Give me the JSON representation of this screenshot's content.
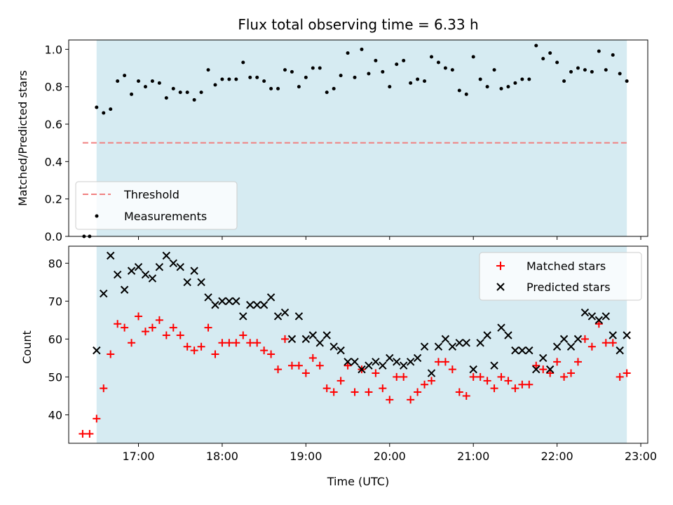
{
  "chart_data": [
    {
      "type": "scatter",
      "title": "Flux total observing time = 6.33 h",
      "xlabel": "",
      "ylabel": "Matched/Predicted stars",
      "xlim": [
        "16:10",
        "23:05"
      ],
      "ylim": [
        0,
        1.05
      ],
      "x_ticks": [
        "17:00",
        "18:00",
        "19:00",
        "20:00",
        "21:00",
        "22:00",
        "23:00"
      ],
      "y_ticks": [
        "0.0",
        "0.2",
        "0.4",
        "0.6",
        "0.8",
        "1.0"
      ],
      "shaded_interval": [
        "16:30",
        "22:50"
      ],
      "shade_color": "#add8e6",
      "legend_position": "lower-left",
      "series": [
        {
          "name": "Threshold",
          "kind": "dashed-line",
          "color": "#f08080",
          "points": [
            [
              "16:20",
              0.5
            ],
            [
              "22:50",
              0.5
            ]
          ]
        },
        {
          "name": "Measurements",
          "kind": "dot",
          "color": "#000000",
          "points": [
            [
              "16:21",
              0.0
            ],
            [
              "16:25",
              0.0
            ],
            [
              "16:30",
              0.69
            ],
            [
              "16:35",
              0.66
            ],
            [
              "16:40",
              0.68
            ],
            [
              "16:45",
              0.83
            ],
            [
              "16:50",
              0.86
            ],
            [
              "16:55",
              0.76
            ],
            [
              "17:00",
              0.83
            ],
            [
              "17:05",
              0.8
            ],
            [
              "17:10",
              0.83
            ],
            [
              "17:15",
              0.82
            ],
            [
              "17:20",
              0.74
            ],
            [
              "17:25",
              0.79
            ],
            [
              "17:30",
              0.77
            ],
            [
              "17:35",
              0.77
            ],
            [
              "17:40",
              0.73
            ],
            [
              "17:45",
              0.77
            ],
            [
              "17:50",
              0.89
            ],
            [
              "17:55",
              0.81
            ],
            [
              "18:00",
              0.84
            ],
            [
              "18:05",
              0.84
            ],
            [
              "18:10",
              0.84
            ],
            [
              "18:15",
              0.93
            ],
            [
              "18:20",
              0.85
            ],
            [
              "18:25",
              0.85
            ],
            [
              "18:30",
              0.83
            ],
            [
              "18:35",
              0.79
            ],
            [
              "18:40",
              0.79
            ],
            [
              "18:45",
              0.89
            ],
            [
              "18:50",
              0.88
            ],
            [
              "18:55",
              0.8
            ],
            [
              "19:00",
              0.85
            ],
            [
              "19:05",
              0.9
            ],
            [
              "19:10",
              0.9
            ],
            [
              "19:15",
              0.77
            ],
            [
              "19:20",
              0.79
            ],
            [
              "19:25",
              0.86
            ],
            [
              "19:30",
              0.98
            ],
            [
              "19:35",
              0.85
            ],
            [
              "19:40",
              1.0
            ],
            [
              "19:45",
              0.87
            ],
            [
              "19:50",
              0.94
            ],
            [
              "19:55",
              0.88
            ],
            [
              "20:00",
              0.8
            ],
            [
              "20:05",
              0.92
            ],
            [
              "20:10",
              0.94
            ],
            [
              "20:15",
              0.82
            ],
            [
              "20:20",
              0.84
            ],
            [
              "20:25",
              0.83
            ],
            [
              "20:30",
              0.96
            ],
            [
              "20:35",
              0.93
            ],
            [
              "20:40",
              0.9
            ],
            [
              "20:45",
              0.89
            ],
            [
              "20:50",
              0.78
            ],
            [
              "20:55",
              0.76
            ],
            [
              "21:00",
              0.96
            ],
            [
              "21:05",
              0.84
            ],
            [
              "21:10",
              0.8
            ],
            [
              "21:15",
              0.89
            ],
            [
              "21:20",
              0.79
            ],
            [
              "21:25",
              0.8
            ],
            [
              "21:30",
              0.82
            ],
            [
              "21:35",
              0.84
            ],
            [
              "21:40",
              0.84
            ],
            [
              "21:45",
              1.02
            ],
            [
              "21:50",
              0.95
            ],
            [
              "21:55",
              0.98
            ],
            [
              "22:00",
              0.93
            ],
            [
              "22:05",
              0.83
            ],
            [
              "22:10",
              0.88
            ],
            [
              "22:15",
              0.9
            ],
            [
              "22:20",
              0.89
            ],
            [
              "22:25",
              0.88
            ],
            [
              "22:30",
              0.99
            ],
            [
              "22:35",
              0.89
            ],
            [
              "22:40",
              0.97
            ],
            [
              "22:45",
              0.87
            ],
            [
              "22:50",
              0.83
            ]
          ]
        }
      ]
    },
    {
      "type": "scatter",
      "title": "",
      "xlabel": "Time (UTC)",
      "ylabel": "Count",
      "xlim": [
        "16:10",
        "23:05"
      ],
      "ylim": [
        32.5,
        84.5
      ],
      "x_ticks": [
        "17:00",
        "18:00",
        "19:00",
        "20:00",
        "21:00",
        "22:00",
        "23:00"
      ],
      "y_ticks": [
        "40",
        "50",
        "60",
        "70",
        "80"
      ],
      "shaded_interval": [
        "16:30",
        "22:50"
      ],
      "shade_color": "#add8e6",
      "legend_position": "top-right",
      "series": [
        {
          "name": "Matched stars",
          "kind": "plus",
          "color": "#ff0000",
          "points": [
            [
              "16:20",
              35
            ],
            [
              "16:25",
              35
            ],
            [
              "16:30",
              39
            ],
            [
              "16:35",
              47
            ],
            [
              "16:40",
              56
            ],
            [
              "16:45",
              64
            ],
            [
              "16:50",
              63
            ],
            [
              "16:55",
              59
            ],
            [
              "17:00",
              66
            ],
            [
              "17:05",
              62
            ],
            [
              "17:10",
              63
            ],
            [
              "17:15",
              65
            ],
            [
              "17:20",
              61
            ],
            [
              "17:25",
              63
            ],
            [
              "17:30",
              61
            ],
            [
              "17:35",
              58
            ],
            [
              "17:40",
              57
            ],
            [
              "17:45",
              58
            ],
            [
              "17:50",
              63
            ],
            [
              "17:55",
              56
            ],
            [
              "18:00",
              59
            ],
            [
              "18:05",
              59
            ],
            [
              "18:10",
              59
            ],
            [
              "18:15",
              61
            ],
            [
              "18:20",
              59
            ],
            [
              "18:25",
              59
            ],
            [
              "18:30",
              57
            ],
            [
              "18:35",
              56
            ],
            [
              "18:40",
              52
            ],
            [
              "18:45",
              60
            ],
            [
              "18:50",
              53
            ],
            [
              "18:55",
              53
            ],
            [
              "19:00",
              51
            ],
            [
              "19:05",
              55
            ],
            [
              "19:10",
              53
            ],
            [
              "19:15",
              47
            ],
            [
              "19:20",
              46
            ],
            [
              "19:25",
              49
            ],
            [
              "19:30",
              53
            ],
            [
              "19:35",
              46
            ],
            [
              "19:40",
              52
            ],
            [
              "19:45",
              46
            ],
            [
              "19:50",
              51
            ],
            [
              "19:55",
              47
            ],
            [
              "20:00",
              44
            ],
            [
              "20:05",
              50
            ],
            [
              "20:10",
              50
            ],
            [
              "20:15",
              44
            ],
            [
              "20:20",
              46
            ],
            [
              "20:25",
              48
            ],
            [
              "20:30",
              49
            ],
            [
              "20:35",
              54
            ],
            [
              "20:40",
              54
            ],
            [
              "20:45",
              52
            ],
            [
              "20:50",
              46
            ],
            [
              "20:55",
              45
            ],
            [
              "21:00",
              50
            ],
            [
              "21:05",
              50
            ],
            [
              "21:10",
              49
            ],
            [
              "21:15",
              47
            ],
            [
              "21:20",
              50
            ],
            [
              "21:25",
              49
            ],
            [
              "21:30",
              47
            ],
            [
              "21:35",
              48
            ],
            [
              "21:40",
              48
            ],
            [
              "21:45",
              53
            ],
            [
              "21:50",
              52
            ],
            [
              "21:55",
              51
            ],
            [
              "22:00",
              54
            ],
            [
              "22:05",
              50
            ],
            [
              "22:10",
              51
            ],
            [
              "22:15",
              54
            ],
            [
              "22:20",
              60
            ],
            [
              "22:25",
              58
            ],
            [
              "22:30",
              64
            ],
            [
              "22:35",
              59
            ],
            [
              "22:40",
              59
            ],
            [
              "22:45",
              50
            ],
            [
              "22:50",
              51
            ]
          ]
        },
        {
          "name": "Predicted stars",
          "kind": "cross",
          "color": "#000000",
          "points": [
            [
              "16:30",
              57
            ],
            [
              "16:35",
              72
            ],
            [
              "16:40",
              82
            ],
            [
              "16:45",
              77
            ],
            [
              "16:50",
              73
            ],
            [
              "16:55",
              78
            ],
            [
              "17:00",
              79
            ],
            [
              "17:05",
              77
            ],
            [
              "17:10",
              76
            ],
            [
              "17:15",
              79
            ],
            [
              "17:20",
              82
            ],
            [
              "17:25",
              80
            ],
            [
              "17:30",
              79
            ],
            [
              "17:35",
              75
            ],
            [
              "17:40",
              78
            ],
            [
              "17:45",
              75
            ],
            [
              "17:50",
              71
            ],
            [
              "17:55",
              69
            ],
            [
              "18:00",
              70
            ],
            [
              "18:05",
              70
            ],
            [
              "18:10",
              70
            ],
            [
              "18:15",
              66
            ],
            [
              "18:20",
              69
            ],
            [
              "18:25",
              69
            ],
            [
              "18:30",
              69
            ],
            [
              "18:35",
              71
            ],
            [
              "18:40",
              66
            ],
            [
              "18:45",
              67
            ],
            [
              "18:50",
              60
            ],
            [
              "18:55",
              66
            ],
            [
              "19:00",
              60
            ],
            [
              "19:05",
              61
            ],
            [
              "19:10",
              59
            ],
            [
              "19:15",
              61
            ],
            [
              "19:20",
              58
            ],
            [
              "19:25",
              57
            ],
            [
              "19:30",
              54
            ],
            [
              "19:35",
              54
            ],
            [
              "19:40",
              52
            ],
            [
              "19:45",
              53
            ],
            [
              "19:50",
              54
            ],
            [
              "19:55",
              53
            ],
            [
              "20:00",
              55
            ],
            [
              "20:05",
              54
            ],
            [
              "20:10",
              53
            ],
            [
              "20:15",
              54
            ],
            [
              "20:20",
              55
            ],
            [
              "20:25",
              58
            ],
            [
              "20:30",
              51
            ],
            [
              "20:35",
              58
            ],
            [
              "20:40",
              60
            ],
            [
              "20:45",
              58
            ],
            [
              "20:50",
              59
            ],
            [
              "20:55",
              59
            ],
            [
              "21:00",
              52
            ],
            [
              "21:05",
              59
            ],
            [
              "21:10",
              61
            ],
            [
              "21:15",
              53
            ],
            [
              "21:20",
              63
            ],
            [
              "21:25",
              61
            ],
            [
              "21:30",
              57
            ],
            [
              "21:35",
              57
            ],
            [
              "21:40",
              57
            ],
            [
              "21:45",
              52
            ],
            [
              "21:50",
              55
            ],
            [
              "21:55",
              52
            ],
            [
              "22:00",
              58
            ],
            [
              "22:05",
              60
            ],
            [
              "22:10",
              58
            ],
            [
              "22:15",
              60
            ],
            [
              "22:20",
              67
            ],
            [
              "22:25",
              66
            ],
            [
              "22:30",
              65
            ],
            [
              "22:35",
              66
            ],
            [
              "22:40",
              61
            ],
            [
              "22:45",
              57
            ],
            [
              "22:50",
              61
            ]
          ]
        }
      ]
    }
  ]
}
